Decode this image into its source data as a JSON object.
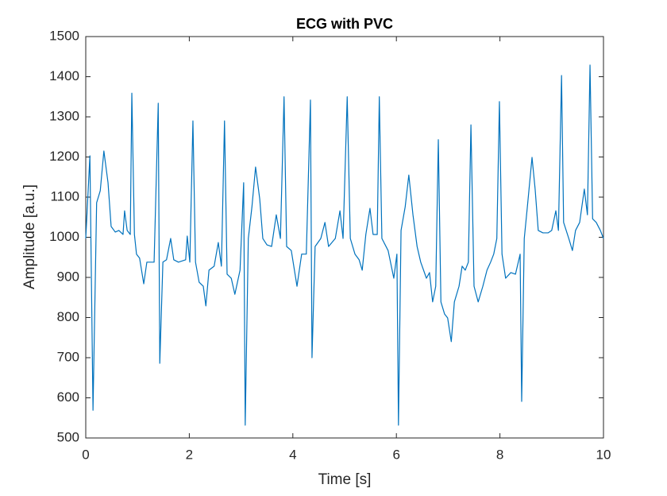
{
  "chart_data": {
    "type": "line",
    "title": "ECG with PVC",
    "xlabel": "Time [s]",
    "ylabel": "Amplitude [a.u.]",
    "x": [
      0,
      0.08,
      0.14,
      0.21,
      0.28,
      0.35,
      0.43,
      0.49,
      0.57,
      0.64,
      0.72,
      0.75,
      0.8,
      0.86,
      0.89,
      0.94,
      0.98,
      1.04,
      1.12,
      1.18,
      1.26,
      1.32,
      1.4,
      1.43,
      1.49,
      1.56,
      1.64,
      1.7,
      1.79,
      1.93,
      1.96,
      2.01,
      2.07,
      2.12,
      2.19,
      2.27,
      2.32,
      2.38,
      2.48,
      2.56,
      2.62,
      2.68,
      2.73,
      2.81,
      2.88,
      2.98,
      3.05,
      3.08,
      3.14,
      3.21,
      3.28,
      3.36,
      3.42,
      3.5,
      3.59,
      3.68,
      3.76,
      3.83,
      3.88,
      3.97,
      4.08,
      4.17,
      4.26,
      4.34,
      4.37,
      4.43,
      4.54,
      4.62,
      4.69,
      4.82,
      4.91,
      4.97,
      5.05,
      5.11,
      5.2,
      5.28,
      5.34,
      5.41,
      5.49,
      5.55,
      5.63,
      5.67,
      5.72,
      5.84,
      5.95,
      6.01,
      6.04,
      6.09,
      6.17,
      6.24,
      6.32,
      6.4,
      6.47,
      6.58,
      6.64,
      6.7,
      6.76,
      6.81,
      6.86,
      6.93,
      6.99,
      7.06,
      7.12,
      7.21,
      7.27,
      7.33,
      7.39,
      7.44,
      7.5,
      7.58,
      7.67,
      7.75,
      7.82,
      7.88,
      7.94,
      7.99,
      8.04,
      8.11,
      8.21,
      8.3,
      8.39,
      8.42,
      8.47,
      8.53,
      8.62,
      8.68,
      8.74,
      8.83,
      8.93,
      9.0,
      9.08,
      9.13,
      9.19,
      9.23,
      9.33,
      9.4,
      9.46,
      9.54,
      9.63,
      9.69,
      9.74,
      9.79,
      9.86,
      9.94,
      10
    ],
    "series": [
      {
        "color": "#0072bd",
        "values": [
          997,
          1203,
          569,
          1086,
          1116,
          1215,
          1136,
          1027,
          1013,
          1017,
          1007,
          1066,
          1017,
          1007,
          1359,
          1007,
          958,
          948,
          884,
          938,
          938,
          938,
          1334,
          686,
          938,
          944,
          997,
          944,
          938,
          944,
          1003,
          938,
          1290,
          938,
          888,
          878,
          829,
          918,
          928,
          987,
          928,
          1290,
          908,
          898,
          858,
          918,
          1136,
          532,
          997,
          1076,
          1175,
          1096,
          997,
          981,
          977,
          1056,
          997,
          1350,
          977,
          967,
          878,
          958,
          958,
          1342,
          700,
          977,
          997,
          1037,
          977,
          997,
          1066,
          997,
          1350,
          997,
          958,
          944,
          918,
          1007,
          1072,
          1007,
          1007,
          1350,
          997,
          967,
          898,
          958,
          532,
          1017,
          1076,
          1155,
          1056,
          977,
          938,
          898,
          912,
          839,
          878,
          1243,
          839,
          809,
          799,
          740,
          839,
          878,
          928,
          918,
          938,
          1280,
          878,
          839,
          878,
          918,
          938,
          958,
          997,
          1338,
          958,
          898,
          912,
          908,
          958,
          591,
          997,
          1076,
          1199,
          1120,
          1017,
          1011,
          1011,
          1017,
          1066,
          1017,
          1403,
          1037,
          997,
          967,
          1017,
          1037,
          1120,
          1056,
          1429,
          1046,
          1037,
          1017,
          997
        ]
      }
    ],
    "xlim": [
      0,
      10
    ],
    "xticks": [
      0,
      2,
      4,
      6,
      8,
      10
    ],
    "ylim": [
      500,
      1500
    ],
    "yticks": [
      500,
      600,
      700,
      800,
      900,
      1000,
      1100,
      1200,
      1300,
      1400,
      1500
    ],
    "grid": false
  }
}
